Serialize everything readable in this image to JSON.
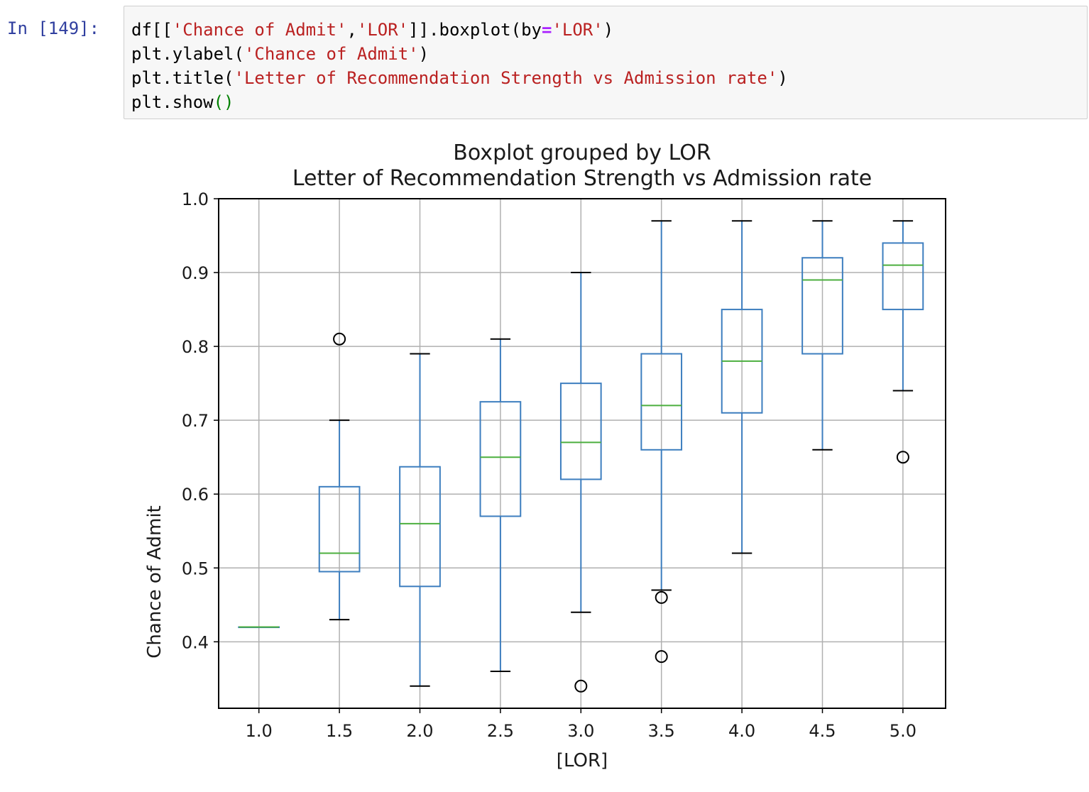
{
  "cell": {
    "prompt": "In [149]:",
    "code_lines": [
      [
        {
          "t": "df[[",
          "c": "p"
        },
        {
          "t": "'Chance of Admit'",
          "c": "s"
        },
        {
          "t": ",",
          "c": "p"
        },
        {
          "t": "'LOR'",
          "c": "s"
        },
        {
          "t": "]].boxplot(by",
          "c": "p"
        },
        {
          "t": "=",
          "c": "o"
        },
        {
          "t": "'LOR'",
          "c": "s"
        },
        {
          "t": ")",
          "c": "p"
        }
      ],
      [
        {
          "t": "plt.ylabel(",
          "c": "p"
        },
        {
          "t": "'Chance of Admit'",
          "c": "s"
        },
        {
          "t": ")",
          "c": "p"
        }
      ],
      [
        {
          "t": "plt.title(",
          "c": "p"
        },
        {
          "t": "'Letter of Recommendation Strength vs Admission rate'",
          "c": "s"
        },
        {
          "t": ")",
          "c": "p"
        }
      ],
      [
        {
          "t": "plt.show",
          "c": "p"
        },
        {
          "t": "()",
          "c": "g"
        }
      ]
    ]
  },
  "chart_data": {
    "type": "boxplot",
    "title": "Boxplot grouped by LOR",
    "subtitle": "Letter of Recommendation Strength vs Admission rate",
    "xlabel": "[LOR]",
    "ylabel": "Chance of Admit",
    "ylim": [
      0.31,
      1.0
    ],
    "yticks": [
      "0.4",
      "0.5",
      "0.6",
      "0.7",
      "0.8",
      "0.9",
      "1.0"
    ],
    "grid": true,
    "colors": {
      "box": "#3d7ebf",
      "median": "#4caf3f",
      "cap": "#000000",
      "grid": "#b0b0b0"
    },
    "categories": [
      "1.0",
      "1.5",
      "2.0",
      "2.5",
      "3.0",
      "3.5",
      "4.0",
      "4.5",
      "5.0"
    ],
    "boxes": [
      {
        "whislo": 0.42,
        "q1": 0.42,
        "med": 0.42,
        "q3": 0.42,
        "whishi": 0.42,
        "fliers": []
      },
      {
        "whislo": 0.43,
        "q1": 0.495,
        "med": 0.52,
        "q3": 0.61,
        "whishi": 0.7,
        "fliers": [
          0.81
        ]
      },
      {
        "whislo": 0.34,
        "q1": 0.475,
        "med": 0.56,
        "q3": 0.637,
        "whishi": 0.79,
        "fliers": []
      },
      {
        "whislo": 0.36,
        "q1": 0.57,
        "med": 0.65,
        "q3": 0.725,
        "whishi": 0.81,
        "fliers": []
      },
      {
        "whislo": 0.44,
        "q1": 0.62,
        "med": 0.67,
        "q3": 0.75,
        "whishi": 0.9,
        "fliers": [
          0.34
        ]
      },
      {
        "whislo": 0.47,
        "q1": 0.66,
        "med": 0.72,
        "q3": 0.79,
        "whishi": 0.97,
        "fliers": [
          0.46,
          0.38
        ]
      },
      {
        "whislo": 0.52,
        "q1": 0.71,
        "med": 0.78,
        "q3": 0.85,
        "whishi": 0.97,
        "fliers": []
      },
      {
        "whislo": 0.66,
        "q1": 0.79,
        "med": 0.89,
        "q3": 0.92,
        "whishi": 0.97,
        "fliers": []
      },
      {
        "whislo": 0.74,
        "q1": 0.85,
        "med": 0.91,
        "q3": 0.94,
        "whishi": 0.97,
        "fliers": [
          0.65
        ]
      }
    ]
  }
}
